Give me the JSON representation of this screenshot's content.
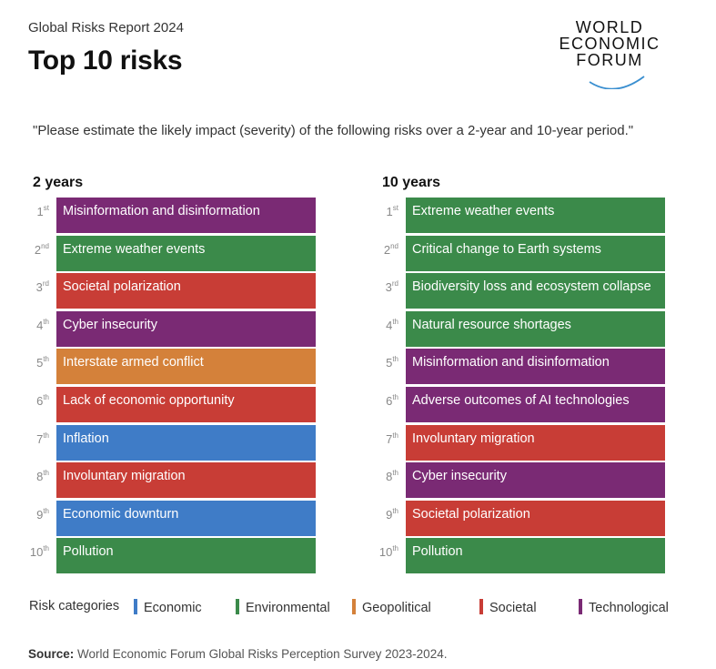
{
  "header": {
    "supertitle": "Global Risks Report 2024",
    "title": "Top 10 risks",
    "logo": {
      "line1": "WORLD",
      "line2": "ECONOMIC",
      "line3": "FORUM"
    }
  },
  "question": "\"Please estimate the likely impact (severity) of the following risks over a 2-year and 10-year period.\"",
  "colors": {
    "Economic": "#3f7cc7",
    "Environmental": "#3b8a4a",
    "Geopolitical": "#d4813a",
    "Societal": "#c83d36",
    "Technological": "#7a2a74"
  },
  "chart_data": {
    "type": "table",
    "columns": [
      {
        "title": "2 years",
        "rows": [
          {
            "rank": "1",
            "suffix": "st",
            "label": "Misinformation and disinformation",
            "category": "Technological"
          },
          {
            "rank": "2",
            "suffix": "nd",
            "label": "Extreme weather events",
            "category": "Environmental"
          },
          {
            "rank": "3",
            "suffix": "rd",
            "label": "Societal polarization",
            "category": "Societal"
          },
          {
            "rank": "4",
            "suffix": "th",
            "label": "Cyber insecurity",
            "category": "Technological"
          },
          {
            "rank": "5",
            "suffix": "th",
            "label": "Interstate armed conflict",
            "category": "Geopolitical"
          },
          {
            "rank": "6",
            "suffix": "th",
            "label": "Lack of economic opportunity",
            "category": "Societal"
          },
          {
            "rank": "7",
            "suffix": "th",
            "label": "Inflation",
            "category": "Economic"
          },
          {
            "rank": "8",
            "suffix": "th",
            "label": "Involuntary migration",
            "category": "Societal"
          },
          {
            "rank": "9",
            "suffix": "th",
            "label": "Economic downturn",
            "category": "Economic"
          },
          {
            "rank": "10",
            "suffix": "th",
            "label": "Pollution",
            "category": "Environmental"
          }
        ]
      },
      {
        "title": "10 years",
        "rows": [
          {
            "rank": "1",
            "suffix": "st",
            "label": "Extreme weather events",
            "category": "Environmental"
          },
          {
            "rank": "2",
            "suffix": "nd",
            "label": "Critical change to Earth systems",
            "category": "Environmental"
          },
          {
            "rank": "3",
            "suffix": "rd",
            "label": "Biodiversity loss and ecosystem collapse",
            "category": "Environmental"
          },
          {
            "rank": "4",
            "suffix": "th",
            "label": "Natural resource shortages",
            "category": "Environmental"
          },
          {
            "rank": "5",
            "suffix": "th",
            "label": "Misinformation and disinformation",
            "category": "Technological"
          },
          {
            "rank": "6",
            "suffix": "th",
            "label": "Adverse outcomes of AI technologies",
            "category": "Technological"
          },
          {
            "rank": "7",
            "suffix": "th",
            "label": "Involuntary migration",
            "category": "Societal"
          },
          {
            "rank": "8",
            "suffix": "th",
            "label": "Cyber insecurity",
            "category": "Technological"
          },
          {
            "rank": "9",
            "suffix": "th",
            "label": "Societal polarization",
            "category": "Societal"
          },
          {
            "rank": "10",
            "suffix": "th",
            "label": "Pollution",
            "category": "Environmental"
          }
        ]
      }
    ]
  },
  "legend": {
    "title": "Risk categories",
    "items": [
      "Economic",
      "Environmental",
      "Geopolitical",
      "Societal",
      "Technological"
    ]
  },
  "source": {
    "label": "Source:",
    "text": "World Economic Forum Global Risks Perception Survey 2023-2024."
  }
}
